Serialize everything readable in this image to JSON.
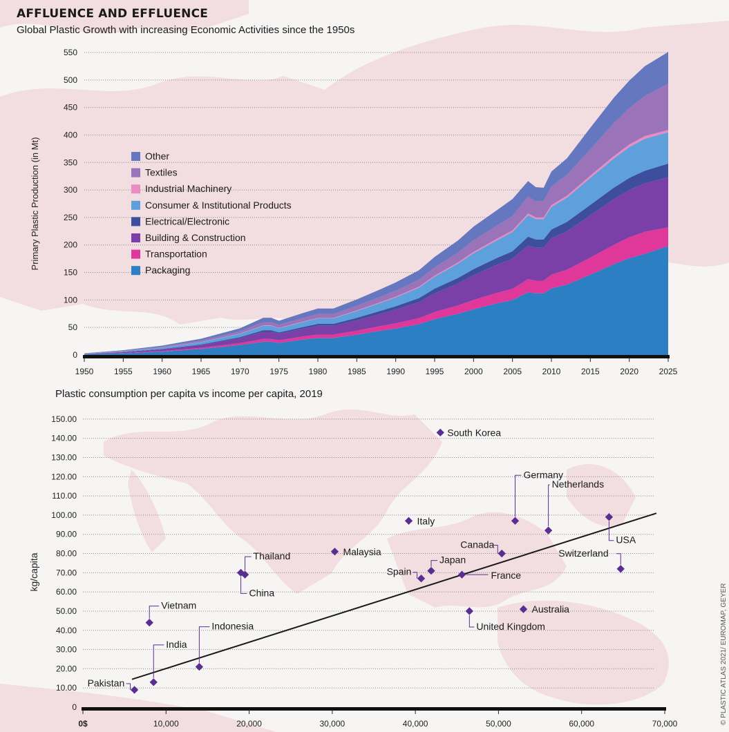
{
  "header": {
    "title": "AFFLUENCE AND EFFLUENCE",
    "subtitle": "Global Plastic Growth with increasing Economic Activities since the 1950s"
  },
  "credit": "© PLASTIC ATLAS 2021/ EUROMAP, GEYER",
  "colors": {
    "background": "#f6f5f4",
    "map_land": "#f2dde1",
    "gridline": "#888888",
    "axis_bar": "#111111",
    "point": "#5a2d91",
    "trendline": "#1a1a1a"
  },
  "chart_data": [
    {
      "type": "area",
      "stacked": true,
      "title": "",
      "xlabel": "",
      "ylabel": "Primary Plastic Production (in Mt)",
      "xlim": [
        1950,
        2025
      ],
      "ylim": [
        0,
        550
      ],
      "x_ticks": [
        "1950",
        "1955",
        "1960",
        "1965",
        "1970",
        "1975",
        "1980",
        "1985",
        "1990",
        "1995",
        "2000",
        "2005",
        "2010",
        "2015",
        "2020",
        "2025"
      ],
      "y_ticks": [
        "0",
        "50",
        "100",
        "150",
        "200",
        "250",
        "300",
        "350",
        "400",
        "450",
        "500",
        "550"
      ],
      "grid": "horizontal dotted",
      "legend_position": "left, mid-chart",
      "x": [
        1950,
        1955,
        1960,
        1965,
        1970,
        1973,
        1974,
        1975,
        1978,
        1980,
        1982,
        1985,
        1988,
        1990,
        1993,
        1995,
        1998,
        2000,
        2003,
        2005,
        2007,
        2008,
        2009,
        2010,
        2012,
        2015,
        2018,
        2020,
        2022,
        2025
      ],
      "series": [
        {
          "name": "Packaging",
          "color": "#2d7fc4",
          "values": [
            1,
            3,
            6,
            11,
            18,
            24,
            24,
            22,
            28,
            31,
            31,
            37,
            44,
            48,
            56,
            65,
            75,
            83,
            94,
            100,
            114,
            112,
            112,
            121,
            128,
            146,
            165,
            176,
            184,
            198
          ]
        },
        {
          "name": "Transportation",
          "color": "#e0379a",
          "values": [
            0.2,
            0.5,
            1,
            2,
            3.5,
            5,
            5,
            4.5,
            5.5,
            6,
            6,
            7,
            8.5,
            9.5,
            11,
            13,
            15,
            17,
            19,
            20,
            24,
            23,
            23,
            25,
            27,
            31,
            35,
            38,
            40,
            34
          ]
        },
        {
          "name": "Building & Construction",
          "color": "#7b3fa8",
          "values": [
            0.5,
            1.5,
            3,
            5,
            9,
            13,
            13,
            12,
            14,
            16,
            16,
            19,
            22,
            25,
            29,
            34,
            40,
            45,
            51,
            55,
            61,
            60,
            60,
            66,
            70,
            77,
            83,
            86,
            88,
            91
          ]
        },
        {
          "name": "Electrical/Electronic",
          "color": "#3d4e9e",
          "values": [
            0.2,
            0.5,
            0.8,
            1.2,
            2,
            3,
            3,
            2.5,
            3,
            3.5,
            3.5,
            4.5,
            5.5,
            6,
            7.5,
            8.5,
            10,
            11,
            12.5,
            13.5,
            16,
            15,
            15,
            16,
            17,
            19,
            21,
            22,
            23,
            25
          ]
        },
        {
          "name": "Consumer & Institutional Products",
          "color": "#5da0db",
          "values": [
            0.5,
            1.2,
            2.5,
            4,
            6,
            8,
            8,
            7.5,
            9,
            10,
            10,
            12.5,
            14.5,
            16,
            19,
            22,
            26,
            29,
            32,
            35,
            39,
            37,
            37,
            41,
            44,
            49,
            53,
            56,
            58,
            57
          ]
        },
        {
          "name": "Industrial Machinery",
          "color": "#e98cc4",
          "values": [
            0.05,
            0.1,
            0.2,
            0.3,
            0.5,
            0.7,
            0.7,
            0.6,
            0.8,
            0.9,
            0.9,
            1,
            1.2,
            1.4,
            1.6,
            1.8,
            2.1,
            2.4,
            2.7,
            3,
            3.2,
            3.1,
            3.1,
            3.5,
            3.6,
            4.1,
            4.5,
            4.8,
            5,
            4
          ]
        },
        {
          "name": "Textiles",
          "color": "#9a73b8",
          "values": [
            0.3,
            0.8,
            1.5,
            2.5,
            4,
            6,
            6,
            5.5,
            6.5,
            7,
            7,
            8.5,
            10,
            11,
            13,
            15,
            18,
            21,
            24,
            26,
            31,
            29,
            30,
            34,
            38,
            48,
            60,
            66,
            73,
            84
          ]
        },
        {
          "name": "Other",
          "color": "#6477bf",
          "values": [
            0.4,
            1,
            2,
            3.5,
            5.5,
            8,
            8,
            7.5,
            9,
            10,
            10,
            11.5,
            13.5,
            15,
            17,
            19,
            22,
            25,
            28,
            31,
            28,
            26,
            24,
            27,
            30,
            39,
            46,
            50,
            54,
            58
          ]
        }
      ]
    },
    {
      "type": "scatter",
      "title": "Plastic consumption per capita vs income per capita, 2019",
      "xlabel": "",
      "ylabel": "kg/capita",
      "xlim": [
        0,
        70000
      ],
      "ylim": [
        0,
        155
      ],
      "x_ticks": [
        "0$",
        "10,000",
        "20,000",
        "30,000",
        "40,000",
        "50,000",
        "60,000",
        "70,000"
      ],
      "y_ticks": [
        "0",
        "10.00",
        "20.00",
        "30.00",
        "40.00",
        "50.00",
        "60.00",
        "70.00",
        "80.00",
        "90.00",
        "100.00",
        "110.00",
        "120.00",
        "130.00",
        "140.00",
        "150.00"
      ],
      "grid": "horizontal dotted",
      "trendline": {
        "x": [
          5900,
          69000
        ],
        "y": [
          14.5,
          101
        ]
      },
      "points": [
        {
          "label": "South Korea",
          "x": 43000,
          "y": 143
        },
        {
          "label": "Germany",
          "x": 52000,
          "y": 97
        },
        {
          "label": "Netherlands",
          "x": 56000,
          "y": 92
        },
        {
          "label": "USA",
          "x": 63300,
          "y": 99
        },
        {
          "label": "Italy",
          "x": 39200,
          "y": 97
        },
        {
          "label": "Malaysia",
          "x": 30300,
          "y": 81
        },
        {
          "label": "Canada",
          "x": 50400,
          "y": 80
        },
        {
          "label": "Switzerland",
          "x": 64700,
          "y": 72
        },
        {
          "label": "Thailand",
          "x": 19500,
          "y": 69
        },
        {
          "label": "China",
          "x": 19000,
          "y": 70
        },
        {
          "label": "Spain",
          "x": 40700,
          "y": 67
        },
        {
          "label": "Japan",
          "x": 41900,
          "y": 71
        },
        {
          "label": "France",
          "x": 45600,
          "y": 69
        },
        {
          "label": "Australia",
          "x": 53000,
          "y": 51
        },
        {
          "label": "United Kingdom",
          "x": 46500,
          "y": 50
        },
        {
          "label": "Vietnam",
          "x": 8000,
          "y": 44
        },
        {
          "label": "Indonesia",
          "x": 14000,
          "y": 21
        },
        {
          "label": "India",
          "x": 8500,
          "y": 13
        },
        {
          "label": "Pakistan",
          "x": 6200,
          "y": 9
        }
      ]
    }
  ]
}
